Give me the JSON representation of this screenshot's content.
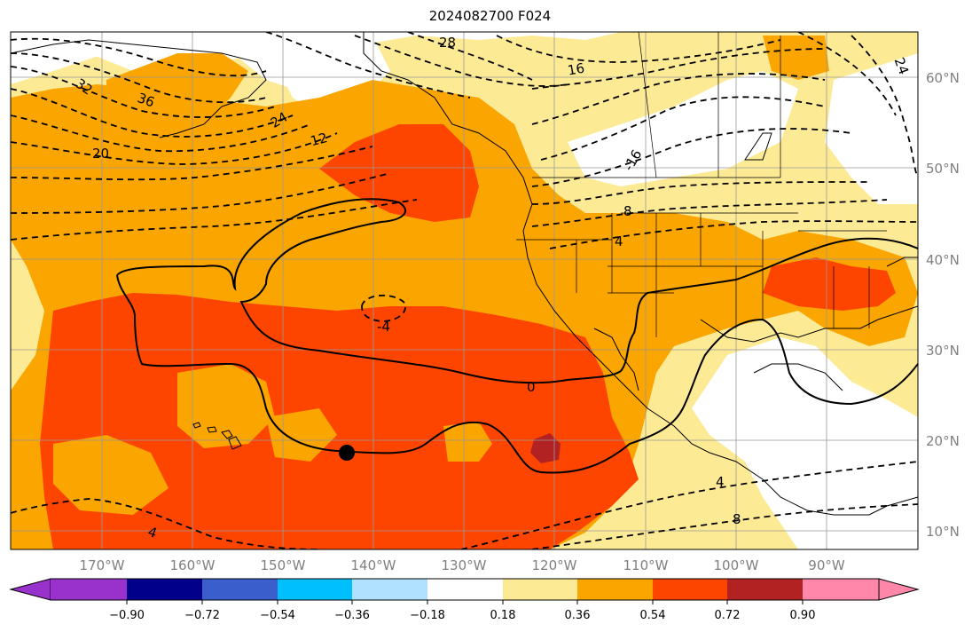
{
  "title": "2024082700 F024",
  "map": {
    "lon_ticks": [
      "170°W",
      "160°W",
      "150°W",
      "140°W",
      "130°W",
      "120°W",
      "110°W",
      "100°W",
      "90°W"
    ],
    "lat_ticks": [
      "60°N",
      "50°N",
      "40°N",
      "30°N",
      "20°N",
      "10°N"
    ],
    "contour_labels": [
      "28",
      "32",
      "36",
      "24",
      "20",
      "12",
      "16",
      "-16",
      "8",
      "4",
      "8",
      "0",
      "-4",
      "4",
      "4",
      "8",
      "4",
      "24"
    ],
    "colors": {
      "orange_light": "#fdea94",
      "orange": "#fba500",
      "red_orange": "#fe4500",
      "dark_red": "#b22222",
      "background": "#ffffff"
    },
    "marker": "filled-circle"
  },
  "colorbar": {
    "tick_labels": [
      "−0.90",
      "−0.72",
      "−0.54",
      "−0.36",
      "−0.18",
      "0.18",
      "0.36",
      "0.54",
      "0.72",
      "0.90"
    ],
    "colors": [
      "#9932cc",
      "#00008b",
      "#3a5fcd",
      "#00bfff",
      "#b0e2ff",
      "#ffffff",
      "#fdea94",
      "#fba500",
      "#fe4500",
      "#b22222",
      "#ff88aa"
    ]
  }
}
